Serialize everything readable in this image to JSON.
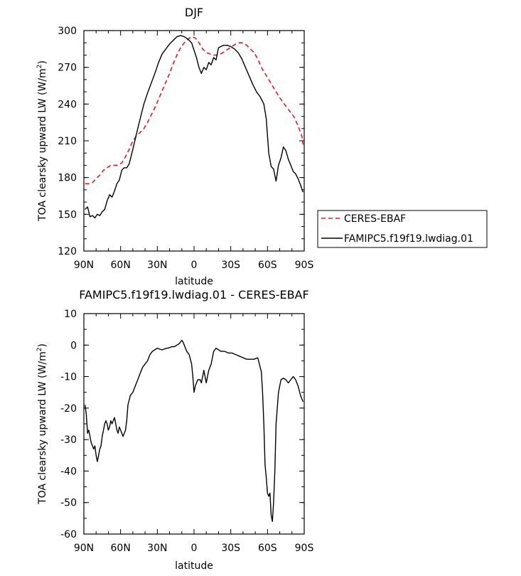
{
  "chart_data": [
    {
      "type": "line",
      "title": "DJF",
      "xlabel": "latitude",
      "ylabel": "TOA clearsky upward LW (W/m",
      "ylabel_sup": "2",
      "ylabel_tail": ")",
      "x_ticks": [
        "90N",
        "60N",
        "30N",
        "0",
        "30S",
        "60S",
        "90S"
      ],
      "y_ticks": [
        "120",
        "150",
        "180",
        "210",
        "240",
        "270",
        "300"
      ],
      "xlim": [
        90,
        -90
      ],
      "ylim": [
        120,
        300
      ],
      "grid": false,
      "legend": "right, outside plot",
      "series": [
        {
          "name": "CERES-EBAF",
          "color": "#e3191c",
          "dash": "dashed",
          "x": [
            89,
            86,
            83,
            80,
            77,
            74,
            71,
            68,
            65,
            62,
            59,
            56,
            53,
            50,
            47,
            44,
            41,
            38,
            35,
            32,
            29,
            26,
            23,
            20,
            17,
            14,
            11,
            8,
            5,
            2,
            -1,
            -4,
            -7,
            -10,
            -13,
            -16,
            -19,
            -22,
            -25,
            -28,
            -31,
            -34,
            -37,
            -40,
            -43,
            -46,
            -49,
            -52,
            -55,
            -58,
            -61,
            -64,
            -67,
            -70,
            -73,
            -76,
            -79,
            -82,
            -85,
            -88,
            -89
          ],
          "y": [
            175,
            175,
            176,
            179,
            182,
            186,
            188,
            190,
            190,
            190,
            192,
            197,
            203,
            210,
            214,
            217,
            220,
            225,
            231,
            237,
            244,
            251,
            258,
            265,
            273,
            280,
            286,
            290,
            293,
            295,
            294,
            290,
            285,
            282,
            281,
            280,
            280,
            281,
            283,
            285,
            287,
            289,
            290,
            290,
            288,
            285,
            282,
            277,
            270,
            265,
            260,
            255,
            250,
            245,
            241,
            237,
            233,
            229,
            222,
            214,
            207
          ]
        },
        {
          "name": "FAMIPC5.f19f19.lwdiag.01",
          "color": "#000000",
          "dash": "solid",
          "x": [
            89,
            87,
            85,
            83,
            81,
            79,
            77,
            75,
            73,
            71,
            69,
            67,
            65,
            63,
            61,
            59,
            57,
            55,
            53,
            50,
            47,
            44,
            41,
            38,
            35,
            32,
            29,
            26,
            23,
            20,
            17,
            14,
            11,
            8,
            5,
            2,
            0,
            -2,
            -4,
            -6,
            -8,
            -10,
            -12,
            -14,
            -16,
            -18,
            -20,
            -22,
            -24,
            -27,
            -30,
            -33,
            -36,
            -39,
            -42,
            -45,
            -48,
            -51,
            -54,
            -57,
            -59,
            -61,
            -63,
            -65,
            -67,
            -69,
            -71,
            -73,
            -75,
            -77,
            -79,
            -81,
            -83,
            -85,
            -87,
            -89
          ],
          "y": [
            154,
            156,
            148,
            149,
            147,
            150,
            149,
            152,
            154,
            161,
            166,
            164,
            169,
            175,
            178,
            186,
            188,
            188,
            191,
            203,
            216,
            228,
            240,
            249,
            257,
            265,
            274,
            281,
            285,
            289,
            292,
            295,
            296,
            295,
            293,
            290,
            284,
            278,
            270,
            265,
            270,
            268,
            274,
            272,
            278,
            276,
            286,
            287,
            288,
            288,
            287,
            285,
            282,
            277,
            270,
            263,
            256,
            250,
            246,
            240,
            228,
            200,
            189,
            187,
            177,
            190,
            196,
            205,
            202,
            195,
            190,
            185,
            183,
            179,
            174,
            168
          ]
        }
      ]
    },
    {
      "type": "line",
      "title": "FAMIPC5.f19f19.lwdiag.01 - CERES-EBAF",
      "xlabel": "latitude",
      "ylabel": "TOA clearsky upward LW (W/m",
      "ylabel_sup": "2",
      "ylabel_tail": ")",
      "x_ticks": [
        "90N",
        "60N",
        "30N",
        "0",
        "30S",
        "60S",
        "90S"
      ],
      "y_ticks": [
        "-60",
        "-50",
        "-40",
        "-30",
        "-20",
        "-10",
        "0",
        "10"
      ],
      "xlim": [
        90,
        -90
      ],
      "ylim": [
        -60,
        10
      ],
      "grid": false,
      "series": [
        {
          "color": "#000000",
          "dash": "solid",
          "x": [
            89,
            88,
            87,
            86,
            85,
            84,
            83,
            82,
            81,
            80,
            79,
            78,
            77,
            76,
            75,
            74,
            73,
            72,
            71,
            70,
            69,
            68,
            67,
            66,
            65,
            64,
            63,
            62,
            61,
            60,
            59,
            58,
            57,
            56,
            55,
            54,
            52,
            50,
            48,
            46,
            44,
            42,
            40,
            38,
            36,
            34,
            32,
            30,
            28,
            26,
            24,
            22,
            20,
            18,
            16,
            14,
            12,
            10,
            9,
            8,
            6,
            4,
            2,
            1,
            0,
            -1,
            -3,
            -5,
            -6,
            -7,
            -8,
            -10,
            -11,
            -12,
            -14,
            -16,
            -18,
            -20,
            -22,
            -25,
            -28,
            -31,
            -34,
            -37,
            -40,
            -43,
            -46,
            -49,
            -52,
            -55,
            -56,
            -57,
            -58,
            -59,
            -60,
            -61,
            -62,
            -63,
            -64,
            -65,
            -66,
            -67,
            -69,
            -71,
            -73,
            -75,
            -77,
            -79,
            -81,
            -83,
            -85,
            -87,
            -88,
            -89
          ],
          "y": [
            -19,
            -22,
            -28,
            -27,
            -29,
            -31,
            -32,
            -33,
            -32,
            -35,
            -37,
            -35,
            -33,
            -32,
            -29,
            -27,
            -25,
            -24,
            -25,
            -27,
            -26,
            -24,
            -25,
            -24,
            -23,
            -25,
            -27,
            -28,
            -26,
            -27,
            -28,
            -29,
            -28,
            -27,
            -24,
            -19,
            -16,
            -15,
            -13,
            -11,
            -9,
            -7,
            -6,
            -5,
            -3,
            -2,
            -1.5,
            -1,
            -1.3,
            -1.5,
            -1.2,
            -1,
            -0.8,
            -0.5,
            -0.5,
            0,
            0.5,
            1.5,
            1,
            0,
            -2,
            -3,
            -6,
            -10,
            -15,
            -13,
            -11,
            -11,
            -12,
            -10,
            -8,
            -12,
            -10,
            -8,
            -6,
            -2,
            -1,
            -1.5,
            -2,
            -2,
            -2.5,
            -2.5,
            -3,
            -3.5,
            -4,
            -4.5,
            -4.5,
            -4.5,
            -4,
            -8.5,
            -15,
            -25,
            -38,
            -42,
            -47,
            -48,
            -47,
            -54,
            -56,
            -50,
            -40,
            -25,
            -15,
            -11,
            -10.5,
            -11,
            -12,
            -11,
            -10,
            -11,
            -13,
            -16,
            -17,
            -18
          ]
        }
      ]
    }
  ]
}
